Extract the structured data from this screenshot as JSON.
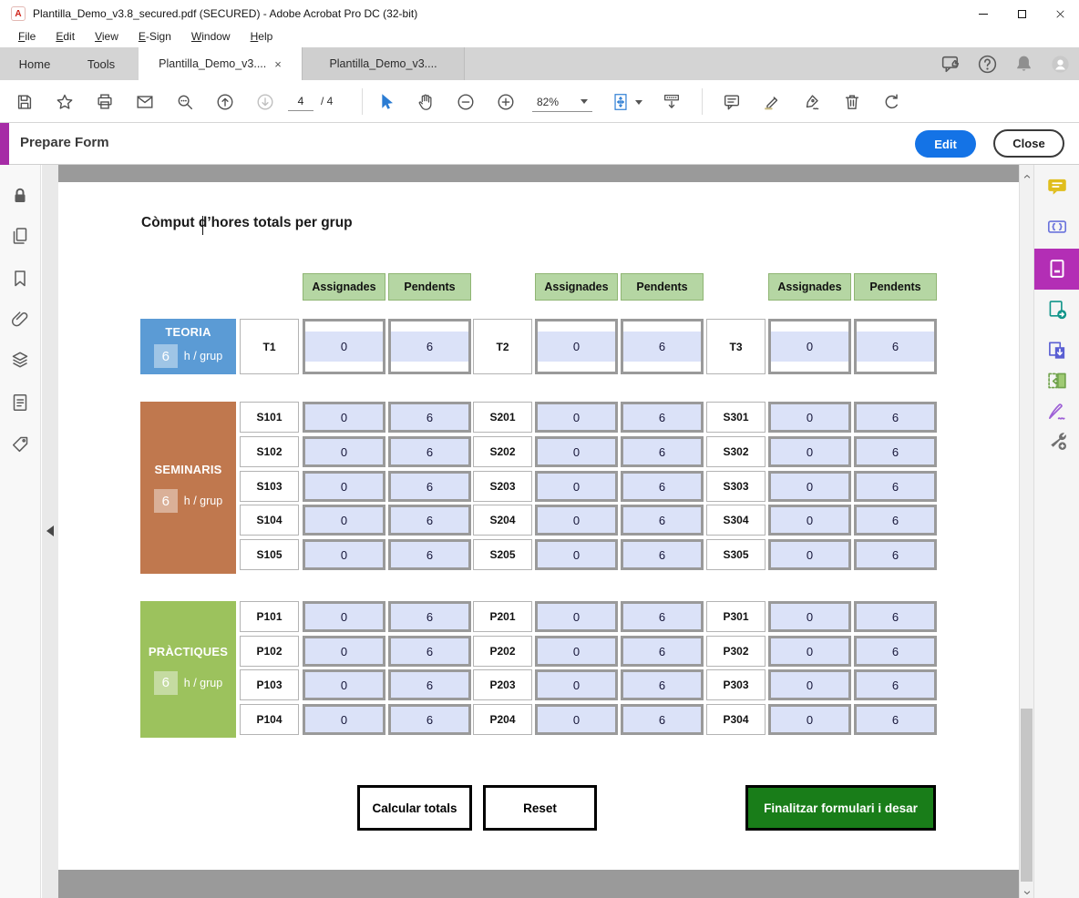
{
  "window": {
    "title": "Plantilla_Demo_v3.8_secured.pdf (SECURED) - Adobe Acrobat Pro DC (32-bit)"
  },
  "menu_items": [
    "File",
    "Edit",
    "View",
    "E-Sign",
    "Window",
    "Help"
  ],
  "tabs": {
    "home": "Home",
    "tools": "Tools",
    "doc_active": "Plantilla_Demo_v3....",
    "doc_inactive": "Plantilla_Demo_v3....",
    "close_glyph": "×"
  },
  "toolbar": {
    "page_current": "4",
    "page_total": "/ 4",
    "zoom": "82%"
  },
  "prepare_form": {
    "title": "Prepare Form",
    "edit": "Edit",
    "close": "Close"
  },
  "icons": {
    "titlebar": [
      "pdf-file-icon",
      "minimize-icon",
      "maximize-icon",
      "close-icon"
    ],
    "tab_bar": [
      "feedback-icon",
      "help-icon",
      "bell-icon",
      "avatar-icon"
    ],
    "toolbar": [
      "save-icon",
      "star-icon",
      "print-icon",
      "email-icon",
      "search-icon",
      "page-up-icon",
      "page-down-icon",
      "pointer-icon",
      "hand-icon",
      "zoom-out-icon",
      "zoom-in-icon",
      "fit-page-icon",
      "fit-width-icon",
      "comment-icon",
      "highlight-icon",
      "sign-icon",
      "trash-icon",
      "rotate-icon"
    ],
    "left_rail": [
      "lock-icon",
      "page-thumbnails-icon",
      "bookmarks-icon",
      "attachments-icon",
      "layers-icon",
      "content-icon",
      "tags-icon"
    ],
    "right_rail": [
      "comment-tool-icon",
      "javascript-tool-icon",
      "prepare-form-tool-icon",
      "export-pdf-tool-icon",
      "create-pdf-tool-icon",
      "organize-pages-tool-icon",
      "fill-sign-tool-icon",
      "more-tools-icon"
    ]
  },
  "page": {
    "heading": "Còmput d’hores totals per grup",
    "column_headers": [
      "Assignades",
      "Pendents"
    ],
    "sections": [
      {
        "name": "TEORIA",
        "hours": "6",
        "unit": "h / grup",
        "color": "#5b9bd5",
        "groups": [
          [
            {
              "id": "T1",
              "assignades": "0",
              "pendents": "6"
            }
          ],
          [
            {
              "id": "T2",
              "assignades": "0",
              "pendents": "6"
            }
          ],
          [
            {
              "id": "T3",
              "assignades": "0",
              "pendents": "6"
            }
          ]
        ]
      },
      {
        "name": "SEMINARIS",
        "hours": "6",
        "unit": "h / grup",
        "color": "#c0784e",
        "groups": [
          [
            {
              "id": "S101",
              "assignades": "0",
              "pendents": "6"
            },
            {
              "id": "S102",
              "assignades": "0",
              "pendents": "6"
            },
            {
              "id": "S103",
              "assignades": "0",
              "pendents": "6"
            },
            {
              "id": "S104",
              "assignades": "0",
              "pendents": "6"
            },
            {
              "id": "S105",
              "assignades": "0",
              "pendents": "6"
            }
          ],
          [
            {
              "id": "S201",
              "assignades": "0",
              "pendents": "6"
            },
            {
              "id": "S202",
              "assignades": "0",
              "pendents": "6"
            },
            {
              "id": "S203",
              "assignades": "0",
              "pendents": "6"
            },
            {
              "id": "S204",
              "assignades": "0",
              "pendents": "6"
            },
            {
              "id": "S205",
              "assignades": "0",
              "pendents": "6"
            }
          ],
          [
            {
              "id": "S301",
              "assignades": "0",
              "pendents": "6"
            },
            {
              "id": "S302",
              "assignades": "0",
              "pendents": "6"
            },
            {
              "id": "S303",
              "assignades": "0",
              "pendents": "6"
            },
            {
              "id": "S304",
              "assignades": "0",
              "pendents": "6"
            },
            {
              "id": "S305",
              "assignades": "0",
              "pendents": "6"
            }
          ]
        ]
      },
      {
        "name": "PRÀCTIQUES",
        "hours": "6",
        "unit": "h / grup",
        "color": "#9cc25d",
        "groups": [
          [
            {
              "id": "P101",
              "assignades": "0",
              "pendents": "6"
            },
            {
              "id": "P102",
              "assignades": "0",
              "pendents": "6"
            },
            {
              "id": "P103",
              "assignades": "0",
              "pendents": "6"
            },
            {
              "id": "P104",
              "assignades": "0",
              "pendents": "6"
            }
          ],
          [
            {
              "id": "P201",
              "assignades": "0",
              "pendents": "6"
            },
            {
              "id": "P202",
              "assignades": "0",
              "pendents": "6"
            },
            {
              "id": "P203",
              "assignades": "0",
              "pendents": "6"
            },
            {
              "id": "P204",
              "assignades": "0",
              "pendents": "6"
            }
          ],
          [
            {
              "id": "P301",
              "assignades": "0",
              "pendents": "6"
            },
            {
              "id": "P302",
              "assignades": "0",
              "pendents": "6"
            },
            {
              "id": "P303",
              "assignades": "0",
              "pendents": "6"
            },
            {
              "id": "P304",
              "assignades": "0",
              "pendents": "6"
            }
          ]
        ]
      }
    ],
    "buttons": {
      "calculate": "Calcular totals",
      "reset": "Reset",
      "finalize": "Finalitzar formulari i desar"
    },
    "colors": {
      "header_bg": "#b5d6a3",
      "field_bg": "#dbe2f8",
      "field_border": "#9a9a9a",
      "finalize_bg": "#197d19",
      "accent_purple": "#a62ca6",
      "edit_blue": "#1473e6"
    }
  }
}
